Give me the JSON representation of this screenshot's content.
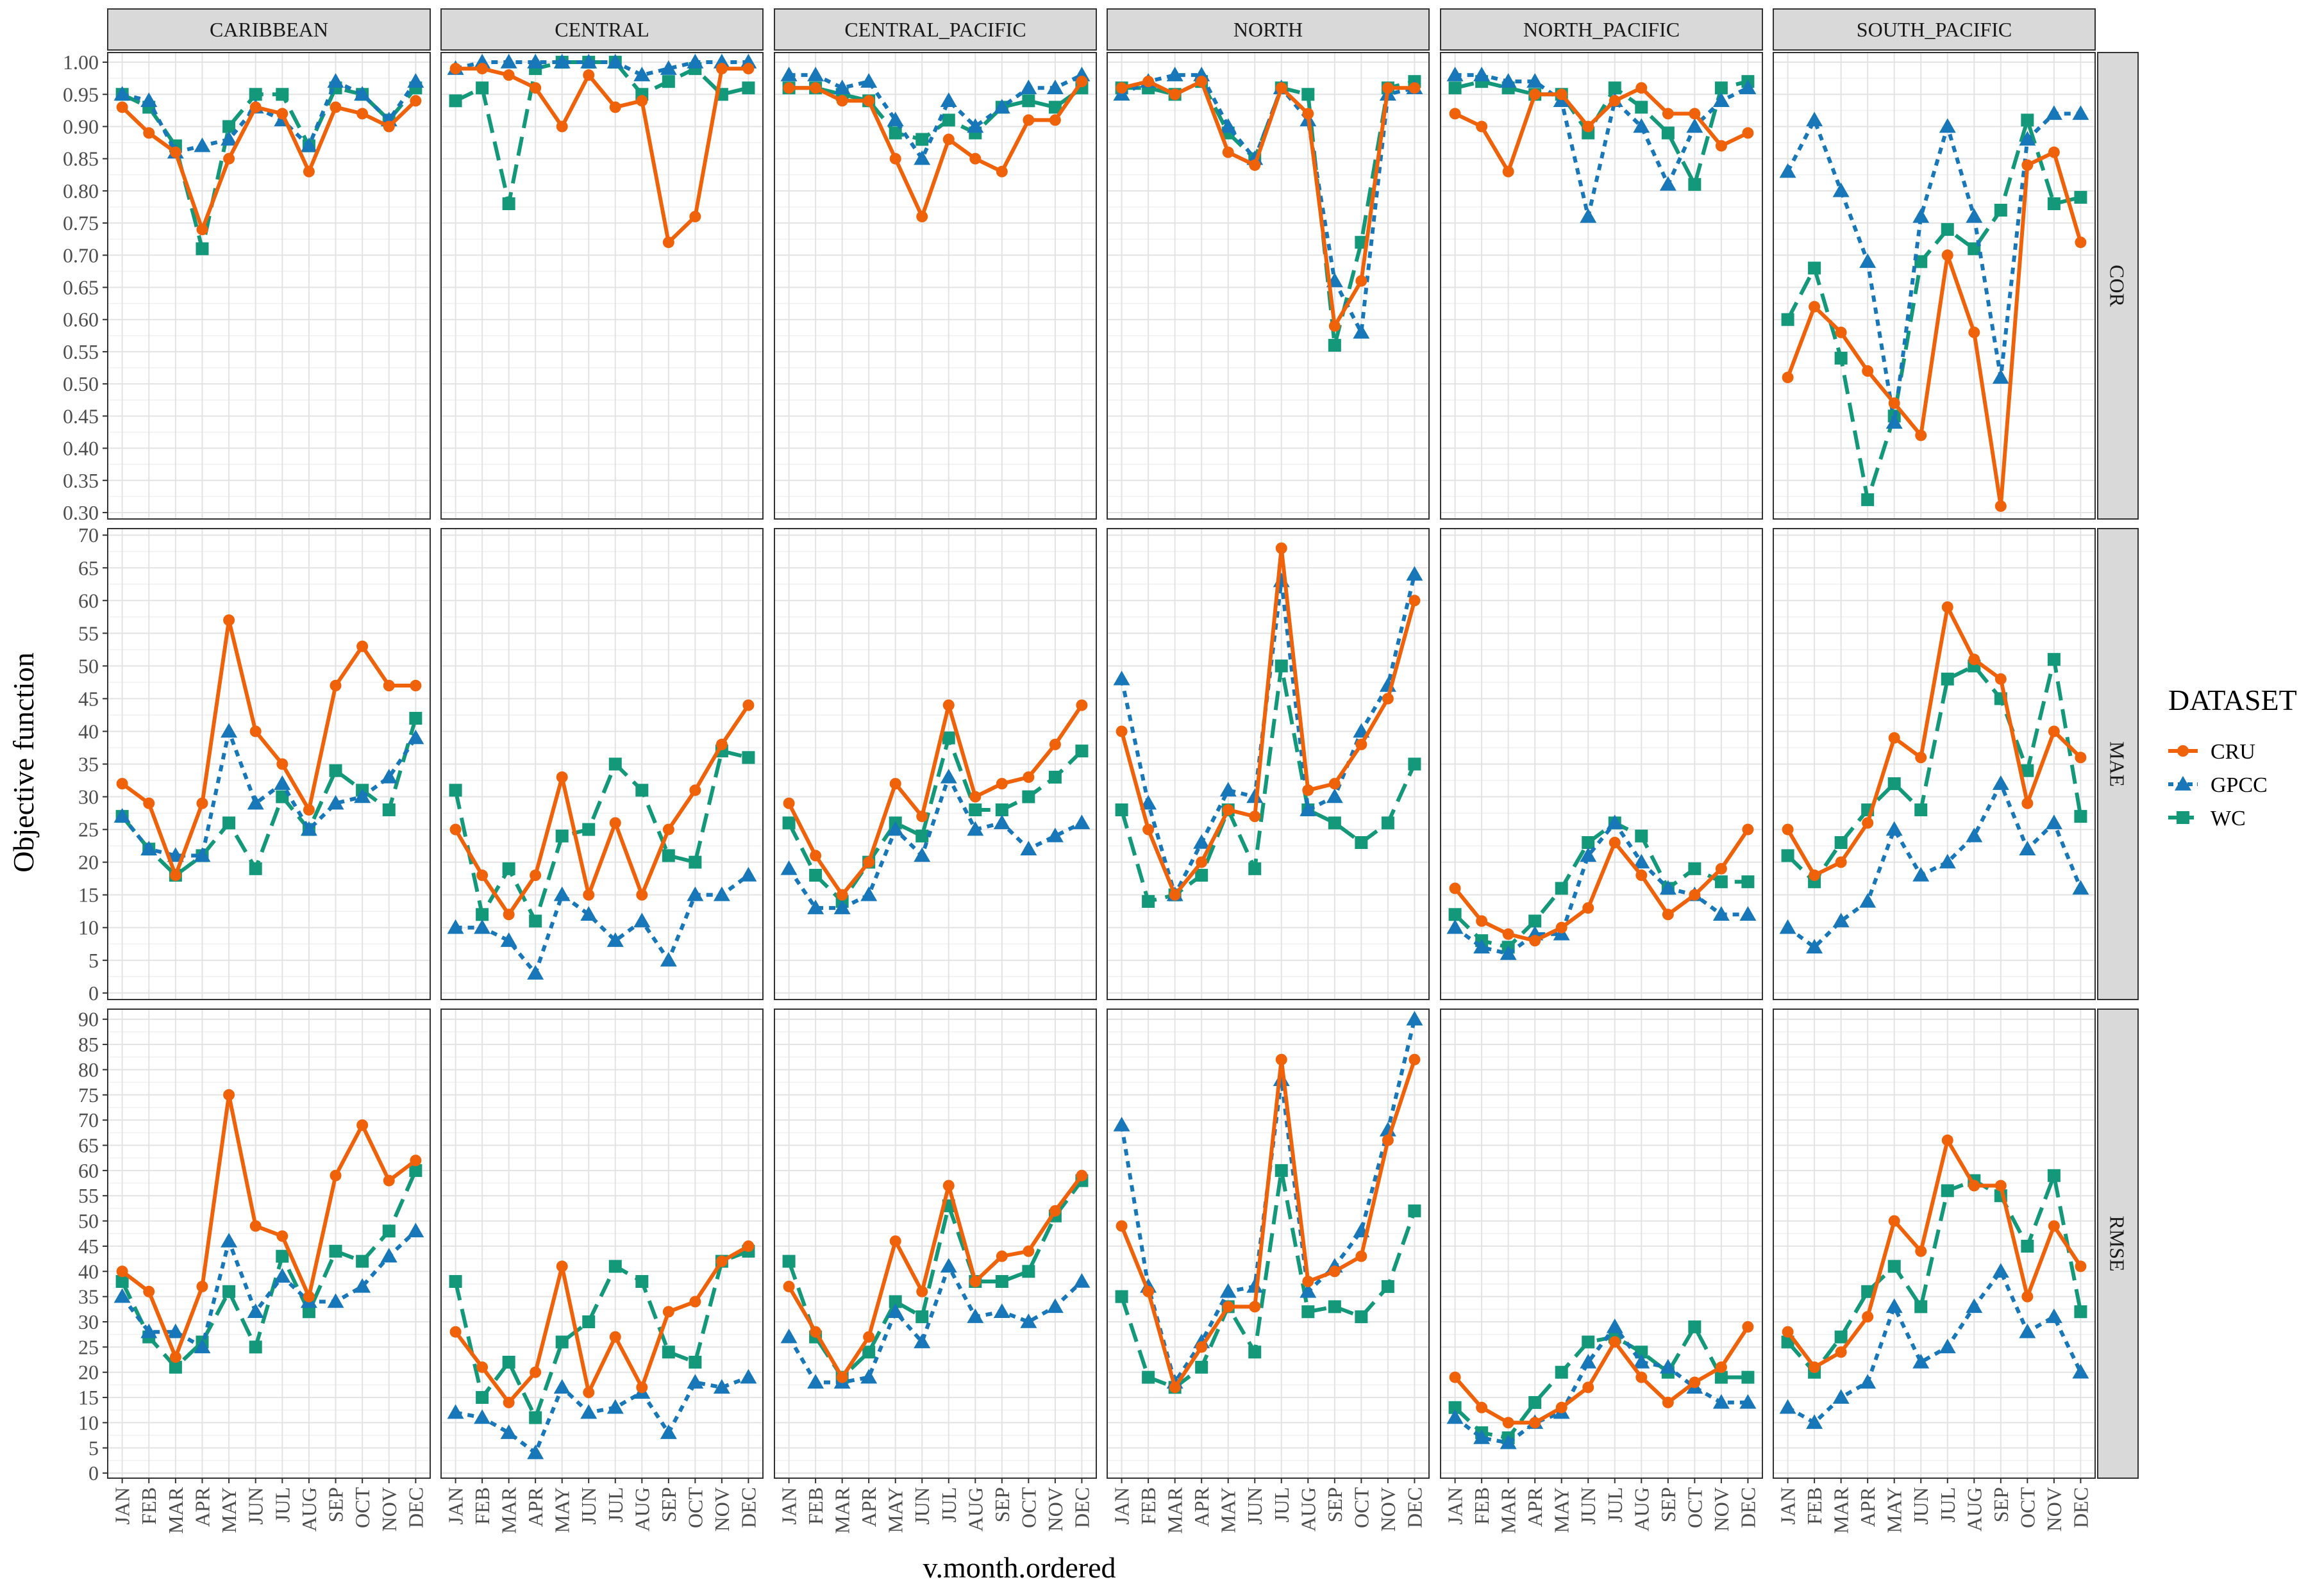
{
  "chart_data": {
    "type": "line",
    "title": "",
    "xlabel": "v.month.ordered",
    "ylabel": "Objective function",
    "categories": [
      "JAN",
      "FEB",
      "MAR",
      "APR",
      "MAY",
      "JUN",
      "JUL",
      "AUG",
      "SEP",
      "OCT",
      "NOV",
      "DEC"
    ],
    "facet_columns": [
      "CARIBBEAN",
      "CENTRAL",
      "CENTRAL_PACIFIC",
      "NORTH",
      "NORTH_PACIFIC",
      "SOUTH_PACIFIC"
    ],
    "legend": {
      "title": "DATASET",
      "position": "right",
      "entries": [
        {
          "name": "CRU",
          "color": "#F0620A",
          "linestyle": "solid",
          "marker": "circle"
        },
        {
          "name": "GPCC",
          "color": "#1877B8",
          "linestyle": "dotted",
          "marker": "triangle"
        },
        {
          "name": "WC",
          "color": "#13987A",
          "linestyle": "dashed",
          "marker": "square"
        }
      ]
    },
    "grid": true,
    "rows": [
      {
        "metric": "COR",
        "ylim": [
          0.29,
          1.015
        ],
        "yticks": [
          0.3,
          0.35,
          0.4,
          0.45,
          0.5,
          0.55,
          0.6,
          0.65,
          0.7,
          0.75,
          0.8,
          0.85,
          0.9,
          0.95,
          1.0
        ],
        "ytick_labels": [
          "0.30",
          "0.35",
          "0.40",
          "0.45",
          "0.50",
          "0.55",
          "0.60",
          "0.65",
          "0.70",
          "0.75",
          "0.80",
          "0.85",
          "0.90",
          "0.95",
          "1.00"
        ],
        "panels": {
          "CARIBBEAN": {
            "CRU": [
              0.93,
              0.89,
              0.86,
              0.74,
              0.85,
              0.93,
              0.92,
              0.83,
              0.93,
              0.92,
              0.9,
              0.94
            ],
            "GPCC": [
              0.95,
              0.94,
              0.86,
              0.87,
              0.88,
              0.93,
              0.91,
              0.87,
              0.97,
              0.95,
              0.91,
              0.97
            ],
            "WC": [
              0.95,
              0.93,
              0.87,
              0.71,
              0.9,
              0.95,
              0.95,
              0.87,
              0.96,
              0.95,
              0.91,
              0.96
            ]
          },
          "CENTRAL": {
            "CRU": [
              0.99,
              0.99,
              0.98,
              0.96,
              0.9,
              0.98,
              0.93,
              0.94,
              0.72,
              0.76,
              0.99,
              0.99
            ],
            "GPCC": [
              0.99,
              1.0,
              1.0,
              1.0,
              1.0,
              1.0,
              1.0,
              0.98,
              0.99,
              1.0,
              1.0,
              1.0
            ],
            "WC": [
              0.94,
              0.96,
              0.78,
              0.99,
              1.0,
              1.0,
              1.0,
              0.95,
              0.97,
              0.99,
              0.95,
              0.96
            ]
          },
          "CENTRAL_PACIFIC": {
            "CRU": [
              0.96,
              0.96,
              0.94,
              0.94,
              0.85,
              0.76,
              0.88,
              0.85,
              0.83,
              0.91,
              0.91,
              0.97
            ],
            "GPCC": [
              0.98,
              0.98,
              0.96,
              0.97,
              0.91,
              0.85,
              0.94,
              0.9,
              0.93,
              0.96,
              0.96,
              0.98
            ],
            "WC": [
              0.96,
              0.96,
              0.95,
              0.94,
              0.89,
              0.88,
              0.91,
              0.89,
              0.93,
              0.94,
              0.93,
              0.96
            ]
          },
          "NORTH": {
            "CRU": [
              0.96,
              0.97,
              0.95,
              0.97,
              0.86,
              0.84,
              0.96,
              0.92,
              0.59,
              0.66,
              0.96,
              0.96
            ],
            "GPCC": [
              0.95,
              0.97,
              0.98,
              0.98,
              0.9,
              0.85,
              0.96,
              0.91,
              0.66,
              0.58,
              0.95,
              0.96
            ],
            "WC": [
              0.96,
              0.96,
              0.95,
              0.97,
              0.89,
              0.85,
              0.96,
              0.95,
              0.56,
              0.72,
              0.96,
              0.97
            ]
          },
          "NORTH_PACIFIC": {
            "CRU": [
              0.92,
              0.9,
              0.83,
              0.95,
              0.95,
              0.9,
              0.94,
              0.96,
              0.92,
              0.92,
              0.87,
              0.89
            ],
            "GPCC": [
              0.98,
              0.98,
              0.97,
              0.97,
              0.94,
              0.76,
              0.94,
              0.9,
              0.81,
              0.9,
              0.94,
              0.96
            ],
            "WC": [
              0.96,
              0.97,
              0.96,
              0.95,
              0.95,
              0.89,
              0.96,
              0.93,
              0.89,
              0.81,
              0.96,
              0.97
            ]
          },
          "SOUTH_PACIFIC": {
            "CRU": [
              0.51,
              0.62,
              0.58,
              0.52,
              0.47,
              0.42,
              0.7,
              0.58,
              0.31,
              0.84,
              0.86,
              0.72
            ],
            "GPCC": [
              0.83,
              0.91,
              0.8,
              0.69,
              0.44,
              0.76,
              0.9,
              0.76,
              0.51,
              0.88,
              0.92,
              0.92
            ],
            "WC": [
              0.6,
              0.68,
              0.54,
              0.32,
              0.45,
              0.69,
              0.74,
              0.71,
              0.77,
              0.91,
              0.78,
              0.79
            ]
          }
        }
      },
      {
        "metric": "MAE",
        "ylim": [
          -1,
          71
        ],
        "yticks": [
          0,
          5,
          10,
          15,
          20,
          25,
          30,
          35,
          40,
          45,
          50,
          55,
          60,
          65,
          70
        ],
        "ytick_labels": [
          "0",
          "5",
          "10",
          "15",
          "20",
          "25",
          "30",
          "35",
          "40",
          "45",
          "50",
          "55",
          "60",
          "65",
          "70"
        ],
        "panels": {
          "CARIBBEAN": {
            "CRU": [
              32,
              29,
              18,
              29,
              57,
              40,
              35,
              28,
              47,
              53,
              47,
              47
            ],
            "GPCC": [
              27,
              22,
              21,
              21,
              40,
              29,
              32,
              25,
              29,
              30,
              33,
              39
            ],
            "WC": [
              27,
              22,
              18,
              21,
              26,
              19,
              30,
              25,
              34,
              31,
              28,
              42
            ]
          },
          "CENTRAL": {
            "CRU": [
              25,
              18,
              12,
              18,
              33,
              15,
              26,
              15,
              25,
              31,
              38,
              44
            ],
            "GPCC": [
              10,
              10,
              8,
              3,
              15,
              12,
              8,
              11,
              5,
              15,
              15,
              18
            ],
            "WC": [
              31,
              12,
              19,
              11,
              24,
              25,
              35,
              31,
              21,
              20,
              37,
              36
            ]
          },
          "CENTRAL_PACIFIC": {
            "CRU": [
              29,
              21,
              15,
              20,
              32,
              27,
              44,
              30,
              32,
              33,
              38,
              44
            ],
            "GPCC": [
              19,
              13,
              13,
              15,
              25,
              21,
              33,
              25,
              26,
              22,
              24,
              26
            ],
            "WC": [
              26,
              18,
              14,
              20,
              26,
              24,
              39,
              28,
              28,
              30,
              33,
              37
            ]
          },
          "NORTH": {
            "CRU": [
              40,
              25,
              15,
              20,
              28,
              27,
              68,
              31,
              32,
              38,
              45,
              60
            ],
            "GPCC": [
              48,
              29,
              15,
              23,
              31,
              30,
              63,
              28,
              30,
              40,
              47,
              64
            ],
            "WC": [
              28,
              14,
              15,
              18,
              28,
              19,
              50,
              28,
              26,
              23,
              26,
              35
            ]
          },
          "NORTH_PACIFIC": {
            "CRU": [
              16,
              11,
              9,
              8,
              10,
              13,
              23,
              18,
              12,
              15,
              19,
              25
            ],
            "GPCC": [
              10,
              7,
              6,
              9,
              9,
              21,
              26,
              20,
              16,
              15,
              12,
              12
            ],
            "WC": [
              12,
              8,
              7,
              11,
              16,
              23,
              26,
              24,
              16,
              19,
              17,
              17
            ]
          },
          "SOUTH_PACIFIC": {
            "CRU": [
              25,
              18,
              20,
              26,
              39,
              36,
              59,
              51,
              48,
              29,
              40,
              36
            ],
            "GPCC": [
              10,
              7,
              11,
              14,
              25,
              18,
              20,
              24,
              32,
              22,
              26,
              16
            ],
            "WC": [
              21,
              17,
              23,
              28,
              32,
              28,
              48,
              50,
              45,
              34,
              51,
              27
            ]
          }
        }
      },
      {
        "metric": "RMSE",
        "ylim": [
          -1,
          92
        ],
        "yticks": [
          0,
          5,
          10,
          15,
          20,
          25,
          30,
          35,
          40,
          45,
          50,
          55,
          60,
          65,
          70,
          75,
          80,
          85,
          90
        ],
        "ytick_labels": [
          "0",
          "5",
          "10",
          "15",
          "20",
          "25",
          "30",
          "35",
          "40",
          "45",
          "50",
          "55",
          "60",
          "65",
          "70",
          "75",
          "80",
          "85",
          "90"
        ],
        "panels": {
          "CARIBBEAN": {
            "CRU": [
              40,
              36,
              23,
              37,
              75,
              49,
              47,
              35,
              59,
              69,
              58,
              62
            ],
            "GPCC": [
              35,
              28,
              28,
              25,
              46,
              32,
              39,
              34,
              34,
              37,
              43,
              48
            ],
            "WC": [
              38,
              27,
              21,
              26,
              36,
              25,
              43,
              32,
              44,
              42,
              48,
              60
            ]
          },
          "CENTRAL": {
            "CRU": [
              28,
              21,
              14,
              20,
              41,
              16,
              27,
              17,
              32,
              34,
              42,
              45
            ],
            "GPCC": [
              12,
              11,
              8,
              4,
              17,
              12,
              13,
              16,
              8,
              18,
              17,
              19
            ],
            "WC": [
              38,
              15,
              22,
              11,
              26,
              30,
              41,
              38,
              24,
              22,
              42,
              44
            ]
          },
          "CENTRAL_PACIFIC": {
            "CRU": [
              37,
              28,
              19,
              27,
              46,
              36,
              57,
              38,
              43,
              44,
              52,
              59
            ],
            "GPCC": [
              27,
              18,
              18,
              19,
              32,
              26,
              41,
              31,
              32,
              30,
              33,
              38
            ],
            "WC": [
              42,
              27,
              19,
              24,
              34,
              31,
              53,
              38,
              38,
              40,
              51,
              58
            ]
          },
          "NORTH": {
            "CRU": [
              49,
              36,
              17,
              25,
              33,
              33,
              82,
              38,
              40,
              43,
              66,
              82
            ],
            "GPCC": [
              69,
              37,
              18,
              26,
              36,
              37,
              78,
              36,
              41,
              48,
              68,
              90
            ],
            "WC": [
              35,
              19,
              17,
              21,
              33,
              24,
              60,
              32,
              33,
              31,
              37,
              52
            ]
          },
          "NORTH_PACIFIC": {
            "CRU": [
              19,
              13,
              10,
              10,
              13,
              17,
              26,
              19,
              14,
              18,
              21,
              29
            ],
            "GPCC": [
              11,
              7,
              6,
              10,
              12,
              22,
              29,
              22,
              21,
              17,
              14,
              14
            ],
            "WC": [
              13,
              8,
              7,
              14,
              20,
              26,
              27,
              24,
              20,
              29,
              19,
              19
            ]
          },
          "SOUTH_PACIFIC": {
            "CRU": [
              28,
              21,
              24,
              31,
              50,
              44,
              66,
              57,
              57,
              35,
              49,
              41
            ],
            "GPCC": [
              13,
              10,
              15,
              18,
              33,
              22,
              25,
              33,
              40,
              28,
              31,
              20
            ],
            "WC": [
              26,
              20,
              27,
              36,
              41,
              33,
              56,
              58,
              55,
              45,
              59,
              32
            ]
          }
        }
      }
    ]
  }
}
